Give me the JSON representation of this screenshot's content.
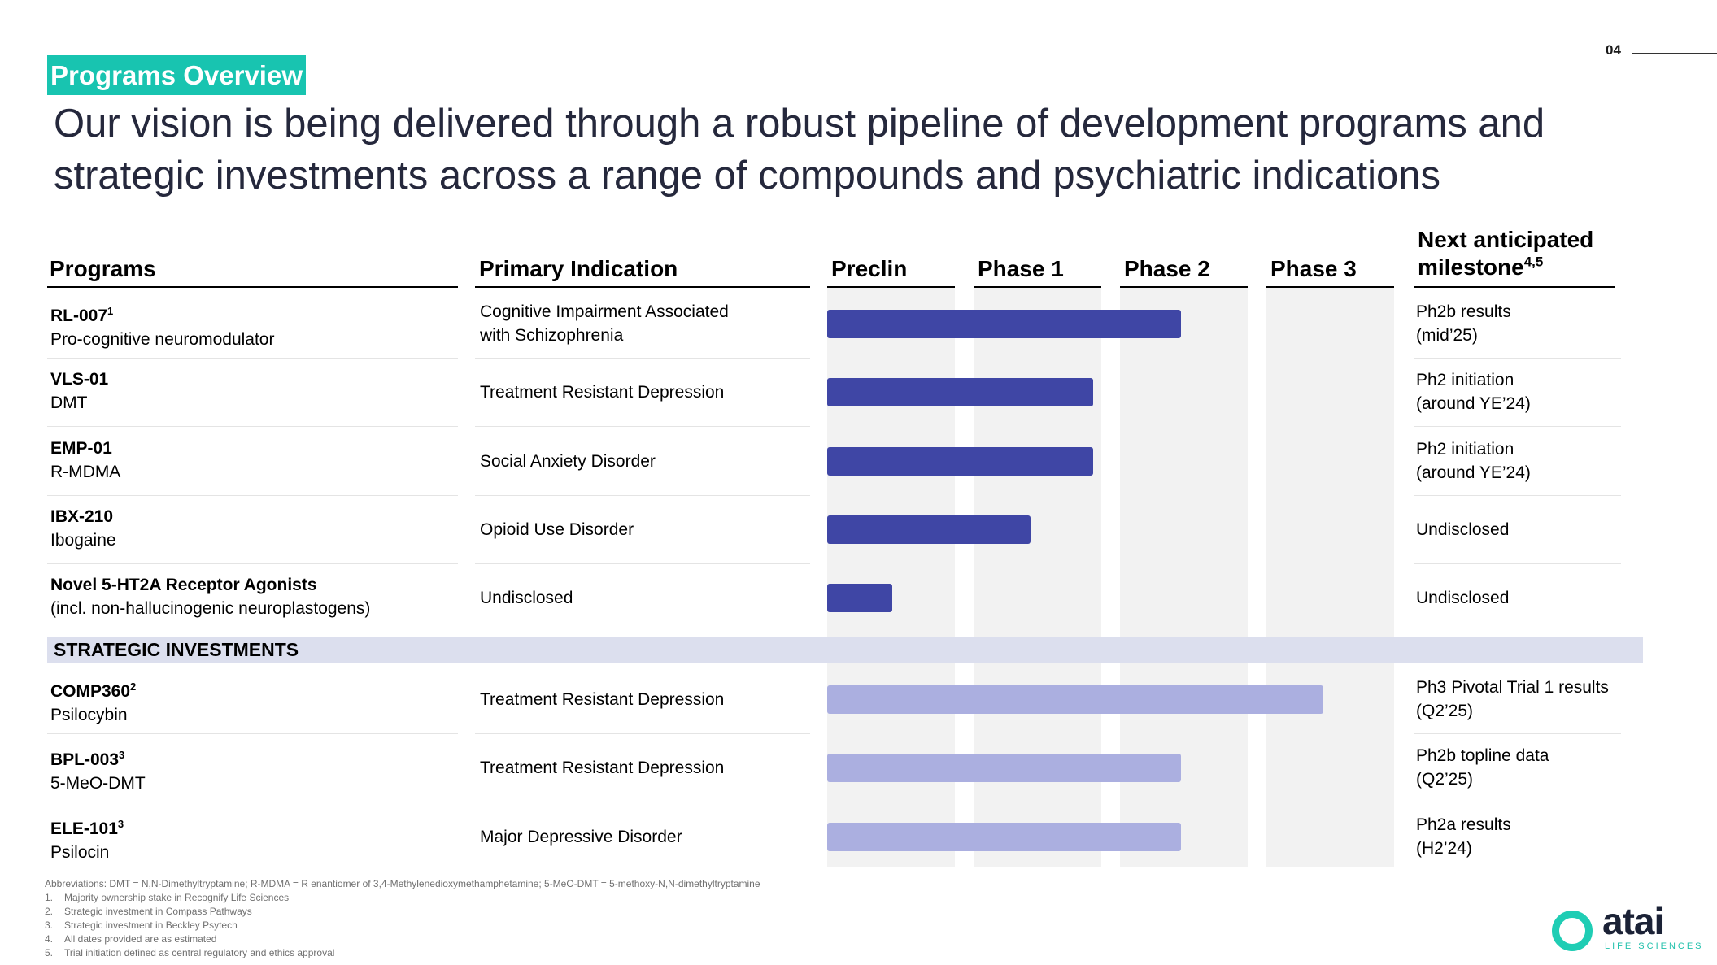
{
  "page_number": "04",
  "section_tag": "Programs Overview",
  "headline": "Our vision is being delivered through a robust pipeline of development programs and strategic investments across a range of compounds and psychiatric indications",
  "columns": {
    "programs": "Programs",
    "indication": "Primary Indication",
    "preclin": "Preclin",
    "phase1": "Phase 1",
    "phase2": "Phase 2",
    "phase3": "Phase 3",
    "milestone_line1": "Next anticipated",
    "milestone_line2": "milestone",
    "milestone_sup": "4,5"
  },
  "programs": [
    {
      "name": "RL-007",
      "sup": "1",
      "compound": "Pro-cognitive neuromodulator",
      "indication": [
        "Cognitive Impairment Associated",
        "with Schizophrenia"
      ],
      "milestone": [
        "Ph2b results",
        "(mid’25)"
      ],
      "progress_phases": 2.45
    },
    {
      "name": "VLS-01",
      "sup": "",
      "compound": "DMT",
      "indication": [
        "Treatment Resistant Depression"
      ],
      "milestone": [
        "Ph2 initiation",
        "(around YE’24)"
      ],
      "progress_phases": 1.85
    },
    {
      "name": "EMP-01",
      "sup": "",
      "compound": "R-MDMA",
      "indication": [
        "Social Anxiety Disorder"
      ],
      "milestone": [
        "Ph2 initiation",
        "(around YE’24)"
      ],
      "progress_phases": 1.85
    },
    {
      "name": "IBX-210",
      "sup": "",
      "compound": "Ibogaine",
      "indication": [
        "Opioid Use Disorder"
      ],
      "milestone": [
        "Undisclosed"
      ],
      "progress_phases": 1.42
    },
    {
      "name": "Novel 5-HT2A Receptor Agonists",
      "sup": "",
      "compound": "(incl. non-hallucinogenic neuroplastogens)",
      "indication": [
        "Undisclosed"
      ],
      "milestone": [
        "Undisclosed"
      ],
      "progress_phases": 0.48
    }
  ],
  "strategic_label": "STRATEGIC INVESTMENTS",
  "investments": [
    {
      "name": "COMP360",
      "sup": "2",
      "compound": "Psilocybin",
      "indication": [
        "Treatment Resistant Depression"
      ],
      "milestone": [
        "Ph3 Pivotal Trial 1 results",
        "(Q2’25)"
      ],
      "progress_phases": 3.42
    },
    {
      "name": "BPL-003",
      "sup": "3",
      "compound": "5-MeO-DMT",
      "indication": [
        "Treatment Resistant Depression"
      ],
      "milestone": [
        "Ph2b topline data",
        "(Q2’25)"
      ],
      "progress_phases": 2.45
    },
    {
      "name": "ELE-101",
      "sup": "3",
      "compound": "Psilocin",
      "indication": [
        "Major Depressive Disorder"
      ],
      "milestone": [
        "Ph2a results",
        "(H2’24)"
      ],
      "progress_phases": 2.45
    }
  ],
  "footnotes": {
    "abbreviations": "Abbreviations: DMT = N,N-Dimethyltryptamine; R-MDMA = R enantiomer of 3,4-Methylenedioxymethamphetamine; 5-MeO-DMT = 5-methoxy-N,N-dimethyltryptamine",
    "items": [
      {
        "num": "1.",
        "text": "Majority ownership stake in Recognify Life Sciences"
      },
      {
        "num": "2.",
        "text": "Strategic investment in Compass Pathways"
      },
      {
        "num": "3.",
        "text": "Strategic investment in Beckley Psytech"
      },
      {
        "num": "4.",
        "text": "All dates provided are as estimated"
      },
      {
        "num": "5.",
        "text": "Trial initiation defined as central regulatory and ethics approval"
      }
    ]
  },
  "logo": {
    "word": "atai",
    "sub": "LIFE SCIENCES"
  },
  "colors": {
    "accent": "#18c4b0",
    "program_bar": "#3f46a5",
    "investment_bar": "#abafe0",
    "strategic_band": "#dcdfee"
  }
}
